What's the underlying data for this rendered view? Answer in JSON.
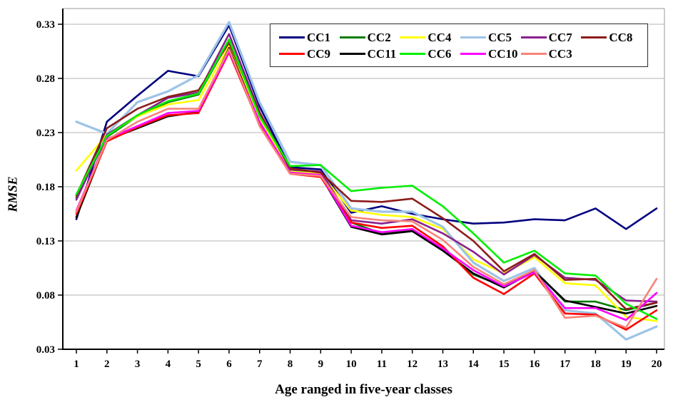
{
  "chart_data": {
    "type": "line",
    "title": "",
    "xlabel": "Age ranged in five-year classes",
    "ylabel": "RMSE",
    "x": [
      1,
      2,
      3,
      4,
      5,
      6,
      7,
      8,
      9,
      10,
      11,
      12,
      13,
      14,
      15,
      16,
      17,
      18,
      19,
      20
    ],
    "xtick_labels": [
      "1",
      "2",
      "3",
      "4",
      "5",
      "6",
      "7",
      "8",
      "9",
      "10",
      "11",
      "12",
      "13",
      "14",
      "15",
      "16",
      "17",
      "18",
      "19",
      "20"
    ],
    "ylim": [
      0.03,
      0.33
    ],
    "yticks": [
      0.33,
      0.28,
      0.23,
      0.18,
      0.13,
      0.08,
      0.03
    ],
    "ytick_labels": [
      "0.33",
      "0.28",
      "0.23",
      "0.18",
      "0.13",
      "0.08",
      "0.03"
    ],
    "grid": "horizontal-only",
    "gridline_color": "#b3b3b3",
    "axis_color": "#000000",
    "legend_position": "top-inside",
    "legend_columns": 6,
    "draw_order": [
      "CC1",
      "CC2",
      "CC4",
      "CC5",
      "CC7",
      "CC8",
      "CC11",
      "CC9",
      "CC6",
      "CC10",
      "CC3"
    ],
    "series": [
      {
        "name": "CC1",
        "color": "#000080",
        "values": [
          0.15,
          0.24,
          0.264,
          0.287,
          0.282,
          0.329,
          0.254,
          0.198,
          0.196,
          0.156,
          0.162,
          0.155,
          0.15,
          0.146,
          0.147,
          0.15,
          0.149,
          0.16,
          0.141,
          0.16
        ]
      },
      {
        "name": "CC2",
        "color": "#007d00",
        "values": [
          0.17,
          0.226,
          0.245,
          0.258,
          0.265,
          0.315,
          0.246,
          0.195,
          0.193,
          0.147,
          0.137,
          0.14,
          0.122,
          0.099,
          0.088,
          0.103,
          0.074,
          0.074,
          0.066,
          0.073
        ]
      },
      {
        "name": "CC4",
        "color": "#ffff00",
        "values": [
          0.195,
          0.228,
          0.245,
          0.256,
          0.26,
          0.31,
          0.244,
          0.194,
          0.192,
          0.158,
          0.154,
          0.152,
          0.141,
          0.113,
          0.1,
          0.115,
          0.091,
          0.089,
          0.06,
          0.056
        ]
      },
      {
        "name": "CC5",
        "color": "#9dc3e6",
        "values": [
          0.24,
          0.229,
          0.258,
          0.268,
          0.283,
          0.332,
          0.258,
          0.203,
          0.2,
          0.16,
          0.157,
          0.157,
          0.143,
          0.11,
          0.093,
          0.105,
          0.066,
          0.063,
          0.039,
          0.051
        ]
      },
      {
        "name": "CC7",
        "color": "#8b208e",
        "values": [
          0.168,
          0.228,
          0.246,
          0.262,
          0.267,
          0.321,
          0.249,
          0.196,
          0.194,
          0.149,
          0.146,
          0.15,
          0.137,
          0.12,
          0.099,
          0.117,
          0.096,
          0.094,
          0.075,
          0.074
        ]
      },
      {
        "name": "CC8",
        "color": "#8e1b1b",
        "values": [
          0.172,
          0.234,
          0.252,
          0.263,
          0.269,
          0.313,
          0.248,
          0.197,
          0.193,
          0.167,
          0.166,
          0.169,
          0.151,
          0.13,
          0.102,
          0.118,
          0.094,
          0.095,
          0.067,
          0.073
        ]
      },
      {
        "name": "CC9",
        "color": "#ff0000",
        "values": [
          0.155,
          0.222,
          0.235,
          0.246,
          0.248,
          0.304,
          0.237,
          0.192,
          0.189,
          0.147,
          0.142,
          0.144,
          0.125,
          0.096,
          0.081,
          0.1,
          0.063,
          0.062,
          0.048,
          0.066
        ]
      },
      {
        "name": "CC11",
        "color": "#000000",
        "values": [
          0.152,
          0.223,
          0.234,
          0.245,
          0.249,
          0.308,
          0.239,
          0.193,
          0.19,
          0.143,
          0.136,
          0.139,
          0.121,
          0.1,
          0.087,
          0.102,
          0.075,
          0.069,
          0.063,
          0.07
        ]
      },
      {
        "name": "CC6",
        "color": "#00ee00",
        "values": [
          0.173,
          0.227,
          0.246,
          0.259,
          0.266,
          0.316,
          0.245,
          0.199,
          0.2,
          0.176,
          0.179,
          0.181,
          0.162,
          0.137,
          0.11,
          0.121,
          0.1,
          0.098,
          0.072,
          0.058
        ]
      },
      {
        "name": "CC10",
        "color": "#ff00ff",
        "values": [
          0.158,
          0.224,
          0.236,
          0.248,
          0.25,
          0.305,
          0.24,
          0.193,
          0.191,
          0.144,
          0.138,
          0.141,
          0.123,
          0.103,
          0.088,
          0.101,
          0.068,
          0.068,
          0.057,
          0.082
        ]
      },
      {
        "name": "CC3",
        "color": "#f88379",
        "values": [
          0.157,
          0.223,
          0.24,
          0.252,
          0.252,
          0.307,
          0.236,
          0.192,
          0.19,
          0.152,
          0.149,
          0.148,
          0.131,
          0.106,
          0.09,
          0.103,
          0.059,
          0.061,
          0.05,
          0.095
        ]
      }
    ]
  }
}
